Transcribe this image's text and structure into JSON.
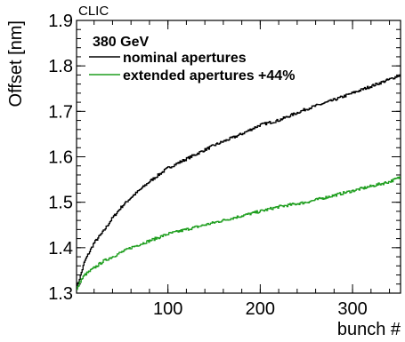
{
  "chart_data": {
    "type": "line",
    "corner_label": "CLIC",
    "xlabel": "bunch #",
    "ylabel": "Offset [nm]",
    "xlim": [
      1,
      352
    ],
    "ylim": [
      1.3,
      1.9
    ],
    "x_ticks": [
      100,
      200,
      300
    ],
    "y_ticks": [
      1.3,
      1.4,
      1.5,
      1.6,
      1.7,
      1.8,
      1.9
    ],
    "y_tick_labels": [
      "1.3",
      "1.4",
      "1.5",
      "1.6",
      "1.7",
      "1.8",
      "1.9"
    ],
    "x_tick_labels": [
      "100",
      "200",
      "300"
    ],
    "legend_header": "380 GeV",
    "legend_position": "top-left",
    "grid": false,
    "series": [
      {
        "name": "nominal apertures",
        "color": "#000000",
        "x": [
          1,
          5,
          10,
          20,
          30,
          40,
          50,
          60,
          80,
          100,
          120,
          150,
          180,
          200,
          220,
          250,
          280,
          300,
          320,
          340,
          352
        ],
        "values": [
          1.31,
          1.335,
          1.37,
          1.41,
          1.435,
          1.465,
          1.49,
          1.51,
          1.545,
          1.575,
          1.595,
          1.625,
          1.65,
          1.67,
          1.68,
          1.705,
          1.725,
          1.74,
          1.755,
          1.77,
          1.78
        ]
      },
      {
        "name": "extended apertures +44%",
        "color": "#1f9e1f",
        "x": [
          1,
          5,
          10,
          20,
          30,
          40,
          50,
          60,
          80,
          100,
          120,
          150,
          180,
          200,
          220,
          250,
          280,
          300,
          320,
          340,
          352
        ],
        "values": [
          1.305,
          1.325,
          1.34,
          1.355,
          1.37,
          1.38,
          1.39,
          1.4,
          1.415,
          1.43,
          1.44,
          1.455,
          1.47,
          1.48,
          1.49,
          1.5,
          1.515,
          1.525,
          1.535,
          1.545,
          1.555
        ]
      }
    ]
  }
}
